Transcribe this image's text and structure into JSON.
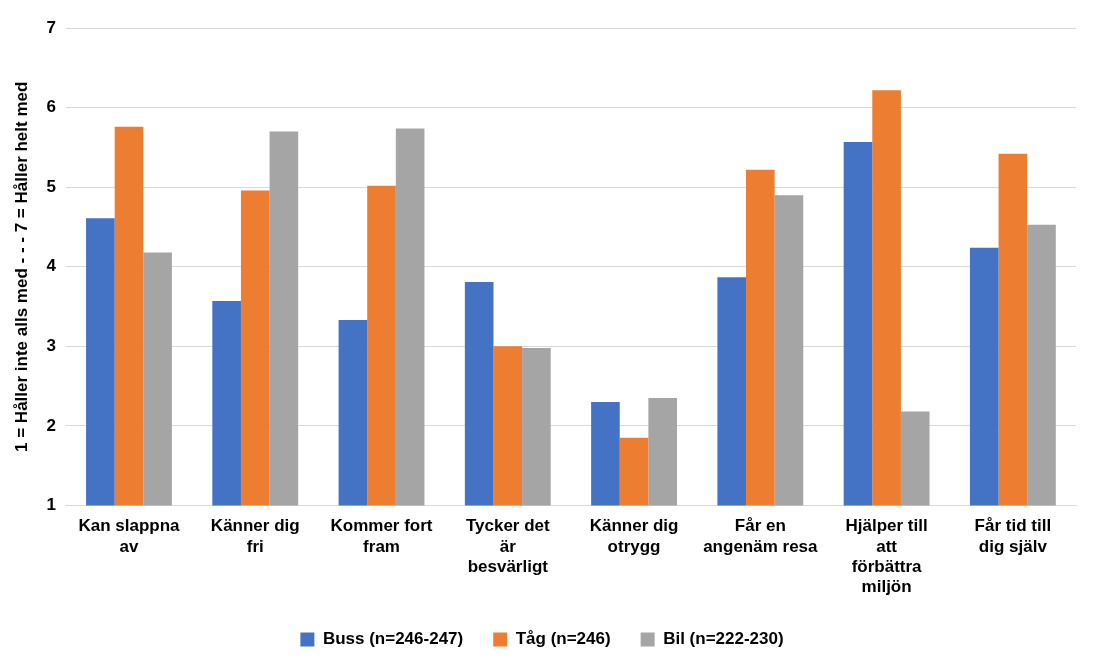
{
  "chart_data": {
    "type": "bar",
    "ylabel": "1 = Håller inte alls med - - - 7 = Håller helt med",
    "categories": [
      "Kan slappna av",
      "Känner dig fri",
      "Kommer fort fram",
      "Tycker det är besvärligt",
      "Känner dig otrygg",
      "Får en angenäm resa",
      "Hjälper till att förbättra miljön",
      "Får tid till dig själv"
    ],
    "series": [
      {
        "name": "Buss (n=246-247)",
        "color": "#4472c4",
        "values": [
          4.61,
          3.57,
          3.33,
          3.81,
          2.3,
          3.87,
          5.57,
          4.24
        ]
      },
      {
        "name": "Tåg (n=246)",
        "color": "#ed7d31",
        "values": [
          5.76,
          4.96,
          5.02,
          3.0,
          1.85,
          5.22,
          6.22,
          5.42
        ]
      },
      {
        "name": "Bil (n=222-230)",
        "color": "#a5a5a5",
        "values": [
          4.18,
          5.7,
          5.74,
          2.98,
          2.35,
          4.9,
          2.18,
          4.53
        ]
      }
    ],
    "ylim": [
      1,
      7
    ],
    "yticks": [
      1,
      2,
      3,
      4,
      5,
      6,
      7
    ],
    "grid": "y",
    "legend": "bottom"
  }
}
